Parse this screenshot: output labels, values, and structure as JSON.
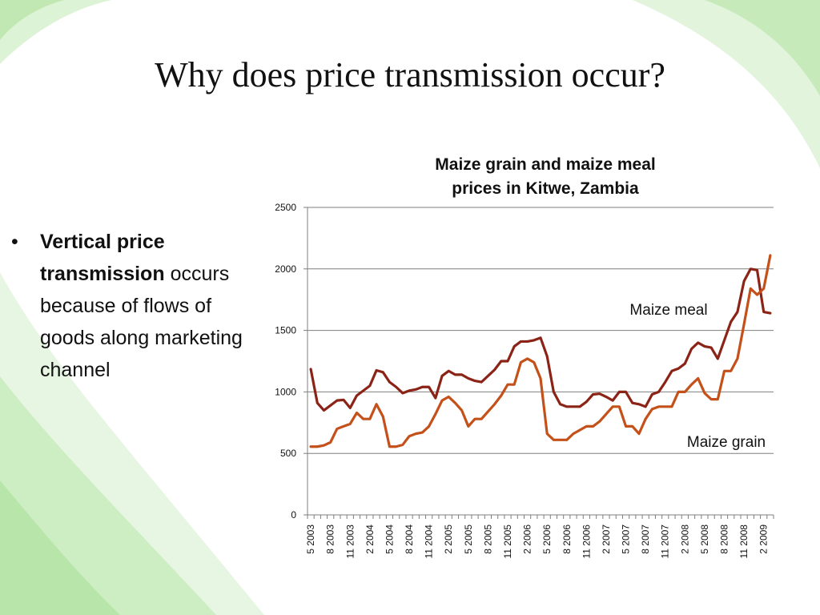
{
  "slide": {
    "title": "Why does price transmission occur?",
    "bullet_symbol": "•",
    "bullet_bold": "Vertical price transmission",
    "bullet_rest": "occurs because of flows of goods along marketing channel"
  },
  "colors": {
    "maize_meal": "#8B2317",
    "maize_grain": "#C4501A",
    "gridline": "#7f7f7f",
    "swoosh": "#9fdc8a"
  },
  "chart_data": {
    "type": "line",
    "title": "Maize grain and maize meal prices in Kitwe, Zambia",
    "title_lines": [
      "Maize grain and maize meal",
      "prices in Kitwe, Zambia"
    ],
    "xlabel": "",
    "ylabel": "",
    "ylim": [
      0,
      2500
    ],
    "yticks": [
      0,
      500,
      1000,
      1500,
      2000,
      2500
    ],
    "grid": "horizontal",
    "legend": "inline labels",
    "x": [
      "5 2003",
      "6 2003",
      "7 2003",
      "8 2003",
      "9 2003",
      "10 2003",
      "11 2003",
      "12 2003",
      "1 2004",
      "2 2004",
      "3 2004",
      "4 2004",
      "5 2004",
      "6 2004",
      "7 2004",
      "8 2004",
      "9 2004",
      "10 2004",
      "11 2004",
      "12 2004",
      "1 2005",
      "2 2005",
      "3 2005",
      "4 2005",
      "5 2005",
      "6 2005",
      "7 2005",
      "8 2005",
      "9 2005",
      "10 2005",
      "11 2005",
      "12 2005",
      "1 2006",
      "2 2006",
      "3 2006",
      "4 2006",
      "5 2006",
      "6 2006",
      "7 2006",
      "8 2006",
      "9 2006",
      "10 2006",
      "11 2006",
      "12 2006",
      "1 2007",
      "2 2007",
      "3 2007",
      "4 2007",
      "5 2007",
      "6 2007",
      "7 2007",
      "8 2007",
      "9 2007",
      "10 2007",
      "11 2007",
      "12 2007",
      "1 2008",
      "2 2008",
      "3 2008",
      "4 2008",
      "5 2008",
      "6 2008",
      "7 2008",
      "8 2008",
      "9 2008",
      "10 2008",
      "11 2008",
      "12 2008",
      "1 2009",
      "2 2009",
      "3 2009"
    ],
    "xtick_labels": [
      "5 2003",
      "8 2003",
      "11 2003",
      "2 2004",
      "5 2004",
      "8 2004",
      "11 2004",
      "2 2005",
      "5 2005",
      "8 2005",
      "11 2005",
      "2 2006",
      "5 2006",
      "8 2006",
      "11 2006",
      "2 2007",
      "5 2007",
      "8 2007",
      "11 2007",
      "2 2008",
      "5 2008",
      "8 2008",
      "11 2008",
      "2 2009"
    ],
    "series": [
      {
        "name": "Maize meal",
        "values": [
          1185,
          910,
          850,
          890,
          930,
          935,
          870,
          970,
          1010,
          1050,
          1175,
          1160,
          1080,
          1040,
          990,
          1010,
          1020,
          1040,
          1040,
          950,
          1130,
          1170,
          1140,
          1140,
          1110,
          1090,
          1080,
          1130,
          1180,
          1250,
          1250,
          1370,
          1410,
          1410,
          1420,
          1440,
          1290,
          1000,
          900,
          880,
          880,
          880,
          920,
          980,
          985,
          960,
          930,
          1000,
          1000,
          910,
          900,
          880,
          980,
          1000,
          1080,
          1170,
          1190,
          1230,
          1350,
          1400,
          1370,
          1360,
          1270,
          1420,
          1570,
          1650,
          1900,
          2000,
          1990,
          1650,
          1640
        ]
      },
      {
        "name": "Maize grain",
        "values": [
          555,
          555,
          565,
          590,
          700,
          720,
          740,
          830,
          780,
          780,
          900,
          800,
          555,
          555,
          570,
          640,
          660,
          670,
          720,
          820,
          930,
          960,
          910,
          850,
          720,
          780,
          780,
          840,
          900,
          970,
          1060,
          1060,
          1240,
          1270,
          1240,
          1110,
          660,
          610,
          610,
          610,
          660,
          690,
          720,
          720,
          760,
          820,
          880,
          880,
          720,
          720,
          660,
          780,
          860,
          880,
          880,
          880,
          1000,
          1000,
          1060,
          1110,
          990,
          940,
          940,
          1170,
          1170,
          1270,
          1550,
          1840,
          1790,
          1840,
          2110
        ]
      }
    ]
  }
}
